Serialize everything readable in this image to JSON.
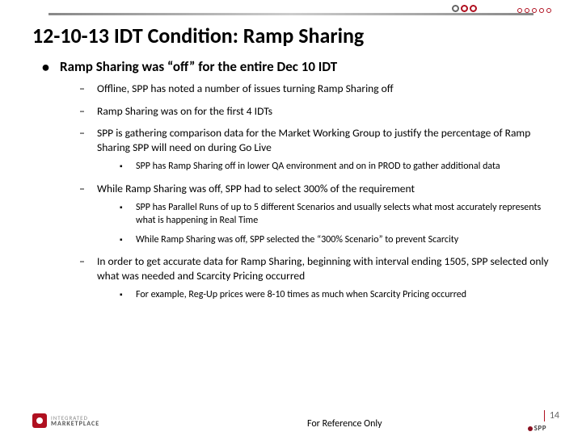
{
  "slide": {
    "title": "12-10-13 IDT Condition: Ramp Sharing",
    "bullet1": "Ramp Sharing was “off” for the entire Dec 10 IDT",
    "sub1": "Offline, SPP has noted a number of issues turning Ramp Sharing off",
    "sub2": "Ramp Sharing was on for the first 4 IDTs",
    "sub3": "SPP is gathering comparison data for the Market Working Group to justify the percentage of Ramp Sharing SPP will need on during Go Live",
    "sub3_a": "SPP has Ramp Sharing off in lower QA environment and on in PROD to gather additional data",
    "sub4": "While Ramp Sharing was off, SPP had to select 300% of the requirement",
    "sub4_a": "SPP has Parallel Runs of up to 5 different Scenarios and usually selects what most accurately represents what is happening in Real Time",
    "sub4_b": "While Ramp Sharing was off, SPP selected the “300% Scenario” to prevent Scarcity",
    "sub5": "In order to get accurate data for Ramp Sharing, beginning with interval ending 1505, SPP selected only what was needed and Scarcity Pricing occurred",
    "sub5_a": "For example, Reg-Up prices were 8-10 times as much when Scarcity Pricing occurred"
  },
  "footer": {
    "left_logo_line1": "INTEGRATED",
    "left_logo_line2": "MARKETPLACE",
    "reference": "For Reference Only",
    "page": "14",
    "right_logo": "SPP"
  },
  "colors": {
    "accent_red": "#b01020",
    "text": "#000000",
    "grey": "#888888",
    "background": "#ffffff"
  }
}
